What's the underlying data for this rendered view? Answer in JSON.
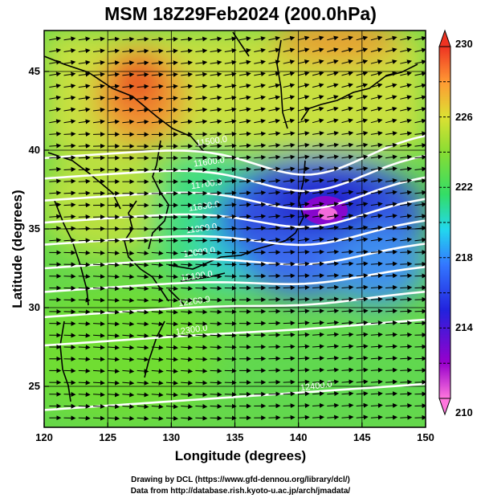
{
  "title": "MSM 18Z29Feb2024 (200.0hPa)",
  "map": {
    "xlabel": "Longitude (degrees)",
    "ylabel": "Latitude  (degrees)",
    "lon_ticks": [
      "120",
      "125",
      "130",
      "135",
      "140",
      "145",
      "150"
    ],
    "lat_ticks": [
      "25",
      "30",
      "35",
      "40",
      "45"
    ],
    "lon_range": [
      120,
      150
    ],
    "lat_range": [
      22.4,
      47.6
    ],
    "shaded_field": "temperature",
    "overlay_vectors": "wind",
    "contour_labels": [
      "11500.0",
      "11600.0",
      "11700.0",
      "11800.0",
      "11900.0",
      "12000.0",
      "12100.0",
      "12200.0",
      "12300.0",
      "12400.0"
    ]
  },
  "colorbar": {
    "ticks": [
      "230",
      "226",
      "222",
      "218",
      "214",
      "210"
    ],
    "range": [
      210,
      230
    ],
    "colors": [
      "#ff77dd",
      "#9900cc",
      "#2222dd",
      "#3377ff",
      "#22d8ee",
      "#33dd66",
      "#88dd33",
      "#dde133",
      "#ff9933",
      "#ee3322"
    ]
  },
  "credits": {
    "line1": "Drawing by DCL (https://www.gfd-dennou.org/library/dcl/)",
    "line2": "Data from http://database.rish.kyoto-u.ac.jp/arch/jmadata/"
  }
}
